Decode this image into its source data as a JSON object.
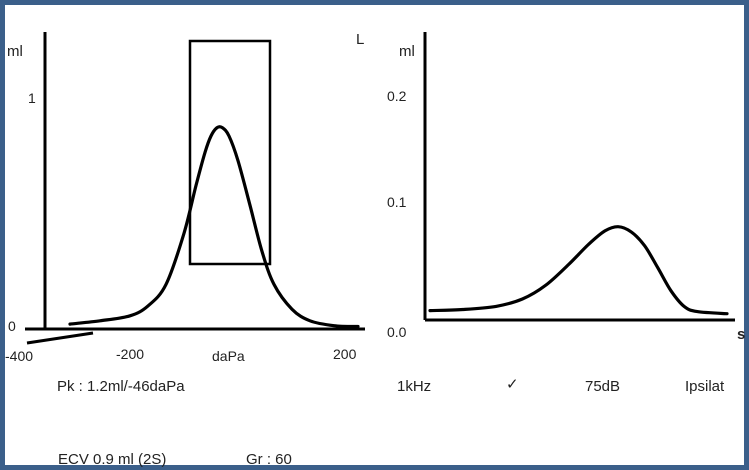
{
  "colors": {
    "frame": "#3b5f8a",
    "ink": "#000000",
    "text": "#222222"
  },
  "chart_data": [
    {
      "type": "line",
      "title": "",
      "xlabel": "daPa",
      "ylabel": "ml",
      "ear_label": "L",
      "xlim": [
        -400,
        200
      ],
      "ylim": [
        0,
        1.5
      ],
      "x_ticks": [
        "-400",
        "-200",
        "daPa",
        "200"
      ],
      "y_ticks": [
        "0",
        "1"
      ],
      "series": [
        {
          "x": [
            -300,
            -250,
            -200,
            -170,
            -140,
            -110,
            -90,
            -75,
            -65,
            -55,
            -46,
            -35,
            -20,
            0,
            20,
            40,
            70,
            100,
            140,
            180
          ],
          "values": [
            0.03,
            0.05,
            0.08,
            0.14,
            0.27,
            0.58,
            0.87,
            1.07,
            1.17,
            1.22,
            1.22,
            1.17,
            1.02,
            0.75,
            0.47,
            0.27,
            0.12,
            0.05,
            0.02,
            0.015
          ]
        }
      ],
      "annotations": [
        "Pk : 1.2ml/-46daPa",
        "ECV 0.9 ml (2S)",
        "Gr : 60"
      ]
    },
    {
      "type": "line",
      "title": "",
      "xlabel": "s",
      "ylabel": "ml",
      "xlim": [
        0,
        1
      ],
      "ylim": [
        0,
        0.25
      ],
      "y_ticks": [
        "0.0",
        "0.1",
        "0.2"
      ],
      "series": [
        {
          "x": [
            0.0,
            0.1,
            0.2,
            0.28,
            0.35,
            0.42,
            0.48,
            0.53,
            0.57,
            0.61,
            0.65,
            0.69,
            0.73,
            0.77,
            0.81,
            0.9
          ],
          "values": [
            0.009,
            0.01,
            0.013,
            0.02,
            0.033,
            0.053,
            0.072,
            0.085,
            0.089,
            0.084,
            0.071,
            0.05,
            0.028,
            0.013,
            0.008,
            0.006
          ]
        }
      ],
      "annotations": [
        "1kHz",
        "✓",
        "75dB",
        "Ipsilat"
      ]
    }
  ]
}
